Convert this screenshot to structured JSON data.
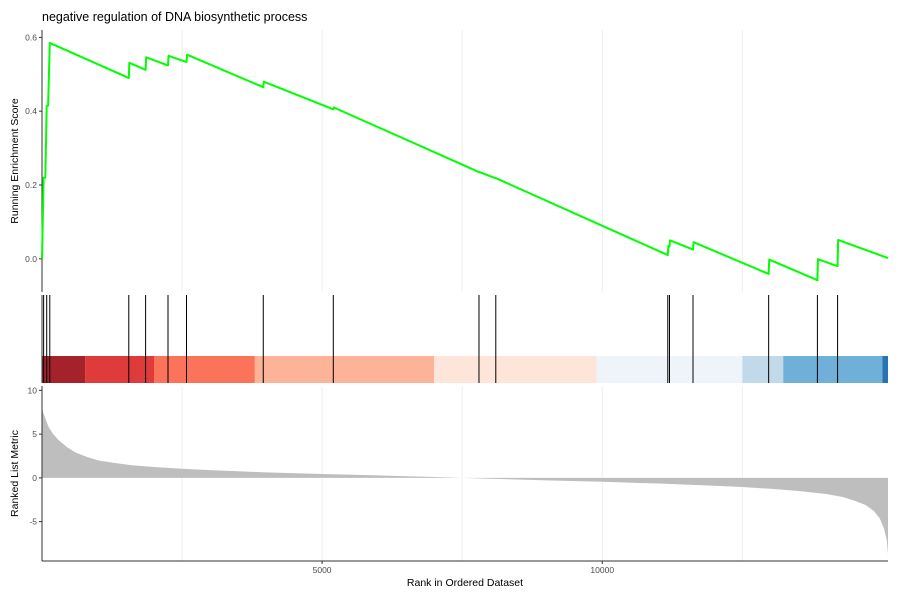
{
  "chart_data": [
    {
      "type": "line",
      "title": "negative regulation of DNA biosynthetic process",
      "xlabel": "",
      "ylabel": "Running Enrichment Score",
      "xlim": [
        1,
        15100
      ],
      "ylim": [
        -0.09,
        0.62
      ],
      "yticks": [
        0.0,
        0.2,
        0.4,
        0.6
      ],
      "yticklabels": [
        "0.0",
        "0.2",
        "0.4",
        "0.6"
      ],
      "vgrid_x": [
        2500,
        5000,
        7500,
        10000,
        12500
      ],
      "grid": "vertical only",
      "line_color": "#00ff00",
      "x": [
        1,
        30,
        60,
        85,
        110,
        140,
        1550,
        1560,
        1850,
        1860,
        2250,
        2260,
        2580,
        2590,
        3950,
        3960,
        5200,
        5210,
        7800,
        7810,
        8100,
        8110,
        11170,
        11180,
        11200,
        11210,
        11620,
        11630,
        12970,
        12980,
        13840,
        13850,
        14200,
        14210,
        15100
      ],
      "y": [
        0.0,
        0.22,
        0.22,
        0.415,
        0.415,
        0.585,
        0.49,
        0.531,
        0.512,
        0.546,
        0.524,
        0.55,
        0.533,
        0.553,
        0.465,
        0.48,
        0.405,
        0.41,
        0.235,
        0.235,
        0.218,
        0.218,
        0.01,
        0.035,
        0.033,
        0.05,
        0.025,
        0.045,
        -0.041,
        -0.002,
        -0.058,
        -0.001,
        -0.02,
        0.051,
        0.002
      ]
    },
    {
      "type": "rug",
      "hit_ranks": [
        30,
        85,
        140,
        1550,
        1850,
        2250,
        2580,
        3950,
        5200,
        7800,
        8100,
        11170,
        11200,
        11620,
        12970,
        13840,
        14200
      ],
      "color_band": [
        {
          "start": 1,
          "end": 770,
          "color": "#a5222a"
        },
        {
          "start": 770,
          "end": 2000,
          "color": "#e03b3b"
        },
        {
          "start": 2000,
          "end": 3800,
          "color": "#fb7459"
        },
        {
          "start": 3800,
          "end": 7000,
          "color": "#fcb398"
        },
        {
          "start": 7000,
          "end": 9900,
          "color": "#fde5da"
        },
        {
          "start": 9900,
          "end": 12500,
          "color": "#eff3fa"
        },
        {
          "start": 12500,
          "end": 13230,
          "color": "#c1d9e9"
        },
        {
          "start": 13230,
          "end": 15000,
          "color": "#6fb0d8"
        },
        {
          "start": 15000,
          "end": 15100,
          "color": "#2675b2"
        }
      ]
    },
    {
      "type": "area",
      "xlabel": "Rank in Ordered Dataset",
      "ylabel": "Ranked List Metric",
      "xlim": [
        1,
        15100
      ],
      "ylim": [
        -9.5,
        10.5
      ],
      "xticks": [
        5000,
        10000
      ],
      "xticklabels": [
        "5000",
        "10000"
      ],
      "yticks": [
        -5,
        0,
        5,
        10
      ],
      "yticklabels": [
        "-5",
        "0",
        "5",
        "10"
      ],
      "fill_color": "#bebebe",
      "x": [
        1,
        20,
        60,
        120,
        200,
        300,
        450,
        600,
        800,
        1000,
        1300,
        1600,
        2000,
        2500,
        3000,
        3500,
        4000,
        5000,
        6000,
        7000,
        7500,
        8000,
        9000,
        10000,
        11000,
        12000,
        12500,
        13000,
        13500,
        14000,
        14300,
        14500,
        14700,
        14850,
        14950,
        15030,
        15080,
        15100
      ],
      "y": [
        8.2,
        7.5,
        6.8,
        5.8,
        5.0,
        4.3,
        3.5,
        2.9,
        2.4,
        2.0,
        1.7,
        1.45,
        1.25,
        1.05,
        0.88,
        0.75,
        0.63,
        0.45,
        0.28,
        0.1,
        0.0,
        -0.1,
        -0.28,
        -0.45,
        -0.65,
        -0.9,
        -1.05,
        -1.25,
        -1.5,
        -1.85,
        -2.2,
        -2.6,
        -3.1,
        -3.8,
        -4.6,
        -5.8,
        -7.2,
        -8.7
      ]
    }
  ]
}
